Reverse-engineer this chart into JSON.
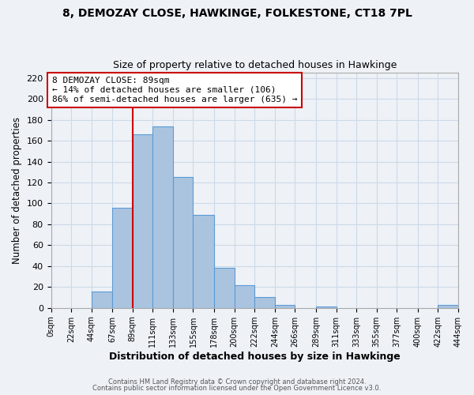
{
  "title_line1": "8, DEMOZAY CLOSE, HAWKINGE, FOLKESTONE, CT18 7PL",
  "title_line2": "Size of property relative to detached houses in Hawkinge",
  "xlabel": "Distribution of detached houses by size in Hawkinge",
  "ylabel": "Number of detached properties",
  "bin_labels": [
    "0sqm",
    "22sqm",
    "44sqm",
    "67sqm",
    "89sqm",
    "111sqm",
    "133sqm",
    "155sqm",
    "178sqm",
    "200sqm",
    "222sqm",
    "244sqm",
    "266sqm",
    "289sqm",
    "311sqm",
    "333sqm",
    "355sqm",
    "377sqm",
    "400sqm",
    "422sqm",
    "444sqm"
  ],
  "bar_heights": [
    0,
    0,
    16,
    96,
    166,
    174,
    125,
    89,
    38,
    22,
    10,
    3,
    0,
    1,
    0,
    0,
    0,
    0,
    0,
    3,
    0
  ],
  "bar_left_edges": [
    0,
    22,
    44,
    67,
    89,
    111,
    133,
    155,
    178,
    200,
    222,
    244,
    266,
    289,
    311,
    333,
    355,
    377,
    400,
    422,
    444
  ],
  "bar_widths": [
    22,
    22,
    23,
    22,
    22,
    22,
    22,
    23,
    22,
    22,
    22,
    22,
    23,
    22,
    22,
    22,
    22,
    23,
    22,
    22,
    0
  ],
  "bar_color": "#aac4e0",
  "bar_edge_color": "#5b9bd5",
  "reference_line_x": 89,
  "reference_line_color": "#cc0000",
  "annotation_line1": "8 DEMOZAY CLOSE: 89sqm",
  "annotation_line2": "← 14% of detached houses are smaller (106)",
  "annotation_line3": "86% of semi-detached houses are larger (635) →",
  "annotation_box_edge_color": "#cc0000",
  "annotation_box_face_color": "#ffffff",
  "ylim": [
    0,
    225
  ],
  "yticks": [
    0,
    20,
    40,
    60,
    80,
    100,
    120,
    140,
    160,
    180,
    200,
    220
  ],
  "grid_color": "#ccd9e8",
  "footer_line1": "Contains HM Land Registry data © Crown copyright and database right 2024.",
  "footer_line2": "Contains public sector information licensed under the Open Government Licence v3.0.",
  "bg_color": "#eef2f7"
}
